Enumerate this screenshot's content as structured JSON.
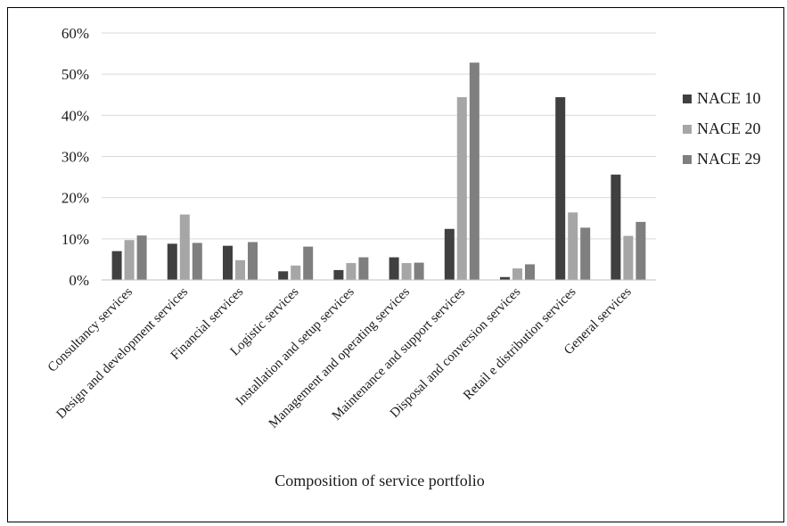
{
  "chart_data": {
    "type": "bar",
    "title": "",
    "xlabel": "Composition of service portfolio",
    "ylabel": "",
    "ylim": [
      0,
      60
    ],
    "yticks": [
      "0%",
      "10%",
      "20%",
      "30%",
      "40%",
      "50%",
      "60%"
    ],
    "grid": true,
    "legend_position": "right",
    "categories": [
      "Consultancy services",
      "Design and development services",
      "Financial services",
      "Logistic services",
      "Installation and setup services",
      "Management and operating services",
      "Maintenance and support services",
      "Disposal and conversion services",
      "Retail e distribution services",
      "General services"
    ],
    "series": [
      {
        "name": "NACE 10",
        "color": "#404040",
        "values": [
          7.0,
          8.8,
          8.3,
          2.1,
          2.4,
          5.5,
          12.4,
          0.7,
          44.4,
          25.6
        ]
      },
      {
        "name": "NACE 20",
        "color": "#a6a6a6",
        "values": [
          9.7,
          15.9,
          4.8,
          3.5,
          4.1,
          4.1,
          44.4,
          2.8,
          16.4,
          10.7
        ]
      },
      {
        "name": "NACE 29",
        "color": "#7f7f7f",
        "values": [
          10.8,
          9.0,
          9.2,
          8.1,
          5.5,
          4.2,
          52.8,
          3.8,
          12.7,
          14.1
        ]
      }
    ]
  }
}
